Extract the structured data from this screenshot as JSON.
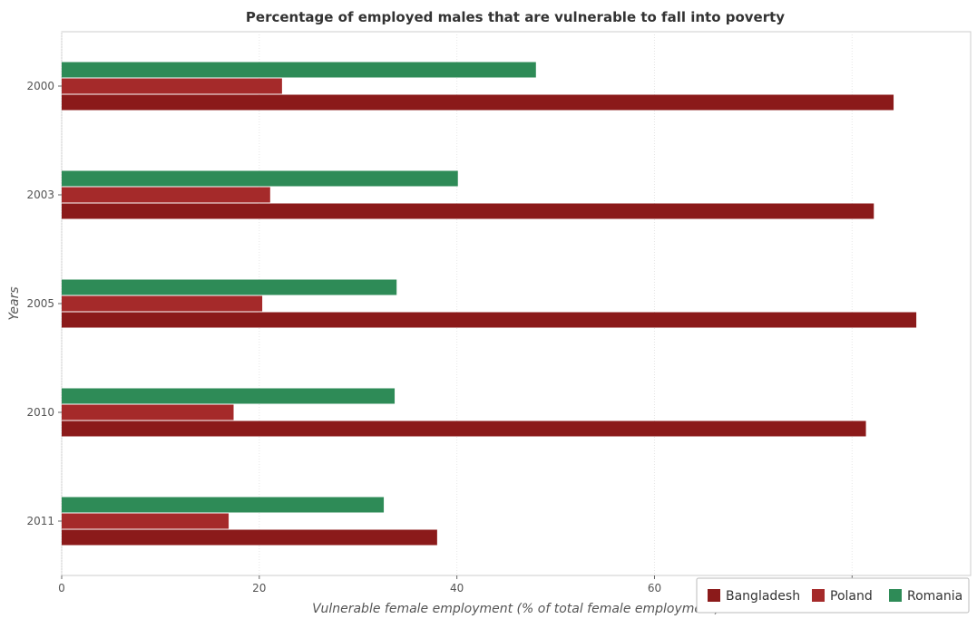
{
  "chart_data": {
    "type": "bar",
    "orientation": "horizontal",
    "title": "Percentage of employed males that are vulnerable to fall into poverty",
    "xlabel": "Vulnerable female employment (% of total female employment)",
    "ylabel": "Years",
    "categories": [
      "2000",
      "2003",
      "2005",
      "2010",
      "2011"
    ],
    "xlim": [
      0,
      92
    ],
    "xticks": [
      0,
      20,
      40,
      60,
      80
    ],
    "grid": true,
    "legend_position": "bottom-right",
    "series": [
      {
        "name": "Bangladesh",
        "color": "#8b1a1a",
        "values": [
          84.2,
          82.2,
          86.5,
          81.4,
          38.0
        ]
      },
      {
        "name": "Poland",
        "color": "#a52a2a",
        "values": [
          22.3,
          21.1,
          20.3,
          17.4,
          16.9
        ]
      },
      {
        "name": "Romania",
        "color": "#2e8b57",
        "values": [
          48.0,
          40.1,
          33.9,
          33.7,
          32.6
        ]
      }
    ]
  }
}
